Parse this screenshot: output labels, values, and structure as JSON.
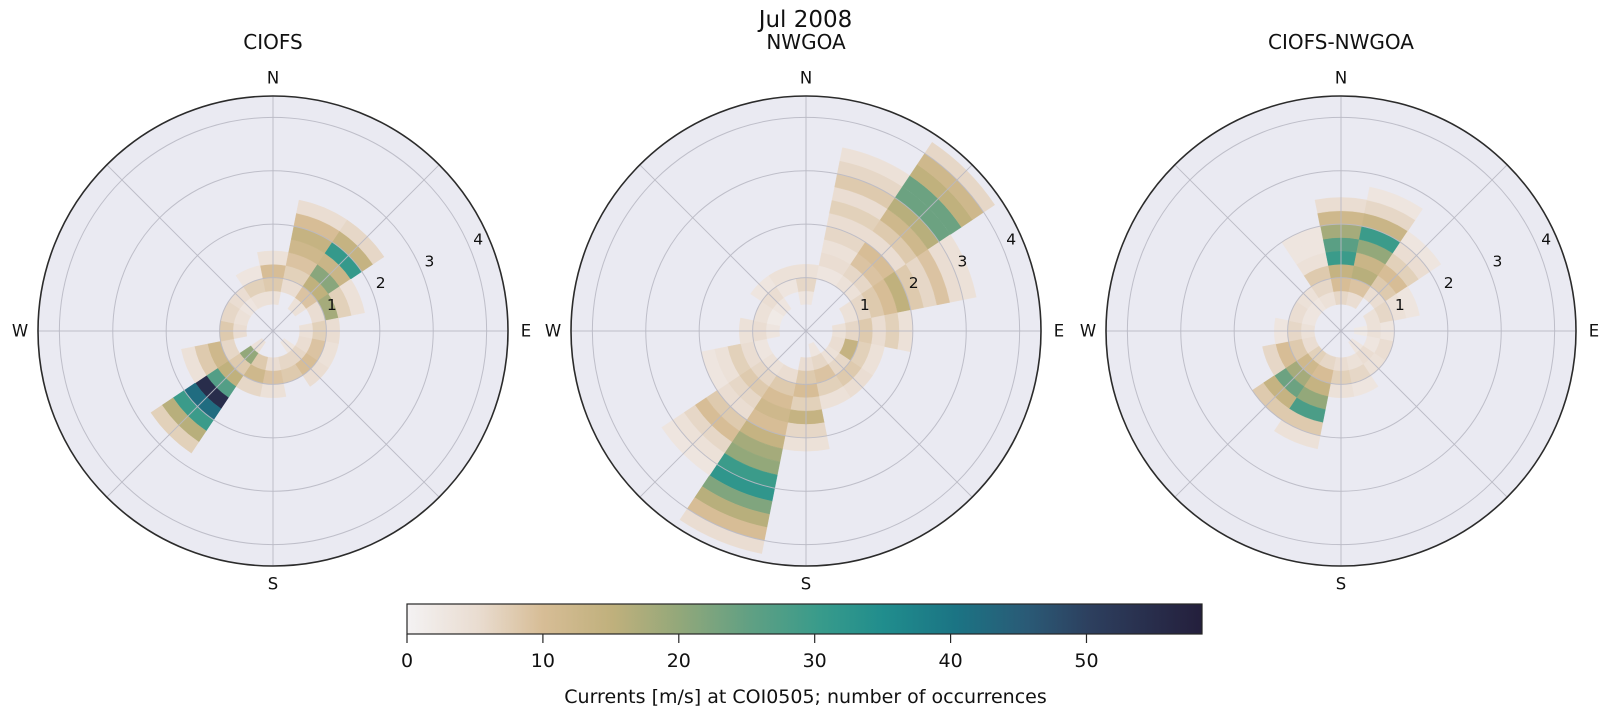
{
  "figure": {
    "title": "Jul 2008"
  },
  "polar_axes": {
    "compass_labels": [
      "N",
      "E",
      "S",
      "W"
    ],
    "radial_ticks": [
      1,
      2,
      3,
      4
    ],
    "r_max": 4.4,
    "radial_label_angle_deg": 66,
    "n_direction_bins": 16,
    "angle_bin_width_deg": 22.5,
    "radial_bin_width": 0.25,
    "axes_background": "#eaeaf2",
    "grid_color": "#b9b9c4",
    "spine_color": "#2b2b2b"
  },
  "colorbar": {
    "label": "Currents [m/s] at COI0505; number of occurrences",
    "ticks": [
      0,
      10,
      20,
      30,
      40,
      50
    ],
    "vmin": 0,
    "vmax": 58.5,
    "colormap_stops": [
      {
        "t": 0.0,
        "color": "#f4f2f3"
      },
      {
        "t": 0.09,
        "color": "#e9dcd0"
      },
      {
        "t": 0.17,
        "color": "#d7bd96"
      },
      {
        "t": 0.26,
        "color": "#bfb07c"
      },
      {
        "t": 0.34,
        "color": "#94a87a"
      },
      {
        "t": 0.43,
        "color": "#61a083"
      },
      {
        "t": 0.52,
        "color": "#389b8b"
      },
      {
        "t": 0.6,
        "color": "#208d8d"
      },
      {
        "t": 0.69,
        "color": "#1b7484"
      },
      {
        "t": 0.78,
        "color": "#2a5a76"
      },
      {
        "t": 0.86,
        "color": "#2d3f5e"
      },
      {
        "t": 1.0,
        "color": "#241f3c"
      }
    ]
  },
  "chart_data": [
    {
      "type": "polar_histogram",
      "title": "CIOFS",
      "direction_convention": "compass_degrees_from_north",
      "radial_unit": "m/s",
      "value_unit": "number of occurrences",
      "cells": [
        [
          0,
          0.5,
          4
        ],
        [
          0,
          0.75,
          8
        ],
        [
          0,
          1.0,
          10
        ],
        [
          0,
          1.25,
          4
        ],
        [
          22.5,
          0.75,
          5
        ],
        [
          22.5,
          1.0,
          7
        ],
        [
          22.5,
          1.25,
          9
        ],
        [
          22.5,
          1.5,
          12
        ],
        [
          22.5,
          1.75,
          14
        ],
        [
          22.5,
          2.0,
          10
        ],
        [
          22.5,
          2.25,
          5
        ],
        [
          45,
          0.5,
          4
        ],
        [
          45,
          0.75,
          9
        ],
        [
          45,
          1.0,
          15
        ],
        [
          45,
          1.25,
          21
        ],
        [
          45,
          1.5,
          13
        ],
        [
          45,
          1.75,
          31
        ],
        [
          45,
          2.0,
          14
        ],
        [
          45,
          2.25,
          6
        ],
        [
          67.5,
          0.75,
          5
        ],
        [
          67.5,
          1.0,
          18
        ],
        [
          67.5,
          1.25,
          7
        ],
        [
          67.5,
          1.5,
          4
        ],
        [
          90,
          0.5,
          4
        ],
        [
          90,
          0.75,
          7
        ],
        [
          90,
          1.0,
          5
        ],
        [
          112.5,
          0.5,
          5
        ],
        [
          112.5,
          0.75,
          9
        ],
        [
          112.5,
          1.0,
          4
        ],
        [
          135,
          0.25,
          3
        ],
        [
          135,
          0.5,
          6
        ],
        [
          135,
          0.75,
          10
        ],
        [
          135,
          1.0,
          5
        ],
        [
          157.5,
          0.5,
          6
        ],
        [
          157.5,
          0.75,
          8
        ],
        [
          180,
          0.5,
          5
        ],
        [
          180,
          0.75,
          9
        ],
        [
          180,
          1.0,
          4
        ],
        [
          202.5,
          0.5,
          8
        ],
        [
          202.5,
          0.75,
          12
        ],
        [
          202.5,
          1.0,
          6
        ],
        [
          225,
          0.25,
          4
        ],
        [
          225,
          0.5,
          20
        ],
        [
          225,
          0.75,
          8
        ],
        [
          225,
          1.0,
          15
        ],
        [
          225,
          1.25,
          27
        ],
        [
          225,
          1.5,
          55
        ],
        [
          225,
          1.75,
          42
        ],
        [
          225,
          2.0,
          30
        ],
        [
          225,
          2.25,
          16
        ],
        [
          225,
          2.5,
          7
        ],
        [
          247.5,
          0.75,
          6
        ],
        [
          247.5,
          1.0,
          12
        ],
        [
          247.5,
          1.25,
          8
        ],
        [
          247.5,
          1.5,
          4
        ],
        [
          270,
          0.5,
          5
        ],
        [
          270,
          0.75,
          8
        ],
        [
          292.5,
          0.5,
          4
        ],
        [
          292.5,
          0.75,
          6
        ],
        [
          315,
          0.5,
          3
        ],
        [
          315,
          0.75,
          5
        ],
        [
          337.5,
          0.5,
          4
        ],
        [
          337.5,
          0.75,
          7
        ],
        [
          337.5,
          1.0,
          3
        ]
      ]
    },
    {
      "type": "polar_histogram",
      "title": "NWGOA",
      "direction_convention": "compass_degrees_from_north",
      "radial_unit": "m/s",
      "value_unit": "number of occurrences",
      "cells": [
        [
          0,
          0.5,
          3
        ],
        [
          0,
          0.75,
          6
        ],
        [
          0,
          1.0,
          4
        ],
        [
          22.5,
          1.0,
          3
        ],
        [
          22.5,
          1.25,
          5
        ],
        [
          22.5,
          1.5,
          4
        ],
        [
          22.5,
          1.75,
          6
        ],
        [
          22.5,
          2.0,
          5
        ],
        [
          22.5,
          2.25,
          7
        ],
        [
          22.5,
          2.5,
          5
        ],
        [
          22.5,
          2.75,
          8
        ],
        [
          22.5,
          3.0,
          6
        ],
        [
          22.5,
          3.25,
          4
        ],
        [
          45,
          1.0,
          4
        ],
        [
          45,
          1.25,
          6
        ],
        [
          45,
          1.5,
          9
        ],
        [
          45,
          1.75,
          10
        ],
        [
          45,
          2.0,
          5
        ],
        [
          45,
          2.25,
          8
        ],
        [
          45,
          2.5,
          12
        ],
        [
          45,
          2.75,
          16
        ],
        [
          45,
          3.0,
          24
        ],
        [
          45,
          3.25,
          24
        ],
        [
          45,
          3.5,
          15
        ],
        [
          45,
          3.75,
          12
        ],
        [
          45,
          4.0,
          6
        ],
        [
          67.5,
          0.75,
          4
        ],
        [
          67.5,
          1.0,
          6
        ],
        [
          67.5,
          1.25,
          8
        ],
        [
          67.5,
          1.5,
          10
        ],
        [
          67.5,
          1.75,
          15
        ],
        [
          67.5,
          2.0,
          8
        ],
        [
          67.5,
          2.25,
          6
        ],
        [
          67.5,
          2.5,
          9
        ],
        [
          67.5,
          2.75,
          5
        ],
        [
          67.5,
          3.0,
          4
        ],
        [
          90,
          0.5,
          4
        ],
        [
          90,
          0.75,
          6
        ],
        [
          90,
          1.0,
          8
        ],
        [
          90,
          1.25,
          5
        ],
        [
          90,
          1.5,
          7
        ],
        [
          90,
          1.75,
          4
        ],
        [
          112.5,
          0.5,
          5
        ],
        [
          112.5,
          0.75,
          14
        ],
        [
          112.5,
          1.0,
          7
        ],
        [
          112.5,
          1.25,
          4
        ],
        [
          135,
          0.5,
          4
        ],
        [
          135,
          0.75,
          6
        ],
        [
          135,
          1.0,
          8
        ],
        [
          135,
          1.25,
          5
        ],
        [
          157.5,
          0.25,
          3
        ],
        [
          157.5,
          0.5,
          6
        ],
        [
          157.5,
          0.75,
          9
        ],
        [
          157.5,
          1.0,
          7
        ],
        [
          157.5,
          1.25,
          4
        ],
        [
          180,
          0.5,
          5
        ],
        [
          180,
          0.75,
          8
        ],
        [
          180,
          1.0,
          10
        ],
        [
          180,
          1.25,
          7
        ],
        [
          180,
          1.5,
          14
        ],
        [
          180,
          1.75,
          6
        ],
        [
          180,
          2.0,
          4
        ],
        [
          202.5,
          0.75,
          5
        ],
        [
          202.5,
          1.0,
          8
        ],
        [
          202.5,
          1.25,
          10
        ],
        [
          202.5,
          1.5,
          12
        ],
        [
          202.5,
          1.75,
          10
        ],
        [
          202.5,
          2.0,
          14
        ],
        [
          202.5,
          2.25,
          18
        ],
        [
          202.5,
          2.5,
          20
        ],
        [
          202.5,
          2.75,
          30
        ],
        [
          202.5,
          3.0,
          32
        ],
        [
          202.5,
          3.25,
          22
        ],
        [
          202.5,
          3.5,
          16
        ],
        [
          202.5,
          3.75,
          10
        ],
        [
          202.5,
          4.0,
          5
        ],
        [
          225,
          0.75,
          4
        ],
        [
          225,
          1.0,
          6
        ],
        [
          225,
          1.25,
          8
        ],
        [
          225,
          1.5,
          6
        ],
        [
          225,
          1.75,
          5
        ],
        [
          225,
          2.0,
          8
        ],
        [
          225,
          2.25,
          10
        ],
        [
          225,
          2.5,
          6
        ],
        [
          225,
          2.75,
          4
        ],
        [
          225,
          3.0,
          3
        ],
        [
          247.5,
          0.75,
          3
        ],
        [
          247.5,
          1.0,
          5
        ],
        [
          247.5,
          1.25,
          7
        ],
        [
          247.5,
          1.5,
          4
        ],
        [
          247.5,
          1.75,
          3
        ],
        [
          270,
          0.5,
          3
        ],
        [
          270,
          0.75,
          5
        ],
        [
          270,
          1.0,
          4
        ],
        [
          292.5,
          0.5,
          2
        ],
        [
          292.5,
          0.75,
          4
        ],
        [
          315,
          0.5,
          3
        ],
        [
          315,
          0.75,
          5
        ],
        [
          315,
          1.0,
          3
        ],
        [
          337.5,
          0.75,
          3
        ],
        [
          337.5,
          1.0,
          4
        ]
      ]
    },
    {
      "type": "polar_histogram",
      "title": "CIOFS-NWGOA",
      "direction_convention": "compass_degrees_from_north",
      "radial_unit": "m/s",
      "value_unit": "number of occurrences",
      "cells": [
        [
          0,
          0.5,
          6
        ],
        [
          0,
          0.75,
          10
        ],
        [
          0,
          1.0,
          14
        ],
        [
          0,
          1.25,
          30
        ],
        [
          0,
          1.5,
          26
        ],
        [
          0,
          1.75,
          18
        ],
        [
          0,
          2.0,
          12
        ],
        [
          0,
          2.25,
          5
        ],
        [
          22.5,
          0.5,
          5
        ],
        [
          22.5,
          0.75,
          9
        ],
        [
          22.5,
          1.0,
          16
        ],
        [
          22.5,
          1.25,
          13
        ],
        [
          22.5,
          1.5,
          20
        ],
        [
          22.5,
          1.75,
          30
        ],
        [
          22.5,
          2.0,
          13
        ],
        [
          22.5,
          2.25,
          6
        ],
        [
          22.5,
          2.5,
          3
        ],
        [
          45,
          0.75,
          5
        ],
        [
          45,
          1.0,
          8
        ],
        [
          45,
          1.25,
          10
        ],
        [
          45,
          1.5,
          7
        ],
        [
          45,
          1.75,
          5
        ],
        [
          45,
          2.0,
          3
        ],
        [
          67.5,
          0.5,
          4
        ],
        [
          67.5,
          0.75,
          6
        ],
        [
          67.5,
          1.0,
          4
        ],
        [
          67.5,
          1.25,
          3
        ],
        [
          90,
          0.25,
          2
        ],
        [
          90,
          0.5,
          4
        ],
        [
          90,
          0.75,
          3
        ],
        [
          112.5,
          0.5,
          3
        ],
        [
          112.5,
          0.75,
          5
        ],
        [
          135,
          0.25,
          3
        ],
        [
          135,
          0.5,
          5
        ],
        [
          135,
          0.75,
          4
        ],
        [
          157.5,
          0.5,
          4
        ],
        [
          157.5,
          0.75,
          6
        ],
        [
          157.5,
          1.0,
          3
        ],
        [
          180,
          0.5,
          5
        ],
        [
          180,
          0.75,
          7
        ],
        [
          180,
          1.0,
          4
        ],
        [
          202.5,
          0.5,
          6
        ],
        [
          202.5,
          0.75,
          10
        ],
        [
          202.5,
          1.0,
          14
        ],
        [
          202.5,
          1.25,
          20
        ],
        [
          202.5,
          1.5,
          28
        ],
        [
          202.5,
          1.75,
          8
        ],
        [
          202.5,
          2.0,
          4
        ],
        [
          225,
          0.5,
          7
        ],
        [
          225,
          0.75,
          12
        ],
        [
          225,
          1.0,
          18
        ],
        [
          225,
          1.25,
          24
        ],
        [
          225,
          1.5,
          14
        ],
        [
          225,
          1.75,
          8
        ],
        [
          247.5,
          0.5,
          5
        ],
        [
          247.5,
          0.75,
          8
        ],
        [
          247.5,
          1.0,
          10
        ],
        [
          247.5,
          1.25,
          6
        ],
        [
          270,
          0.5,
          4
        ],
        [
          270,
          0.75,
          6
        ],
        [
          270,
          1.0,
          3
        ],
        [
          292.5,
          0.5,
          3
        ],
        [
          292.5,
          0.75,
          5
        ],
        [
          315,
          0.5,
          3
        ],
        [
          315,
          0.75,
          4
        ],
        [
          337.5,
          0.5,
          4
        ],
        [
          337.5,
          0.75,
          6
        ],
        [
          337.5,
          1.0,
          8
        ],
        [
          337.5,
          1.25,
          4
        ],
        [
          337.5,
          1.5,
          3
        ],
        [
          337.5,
          1.75,
          3
        ]
      ]
    }
  ]
}
